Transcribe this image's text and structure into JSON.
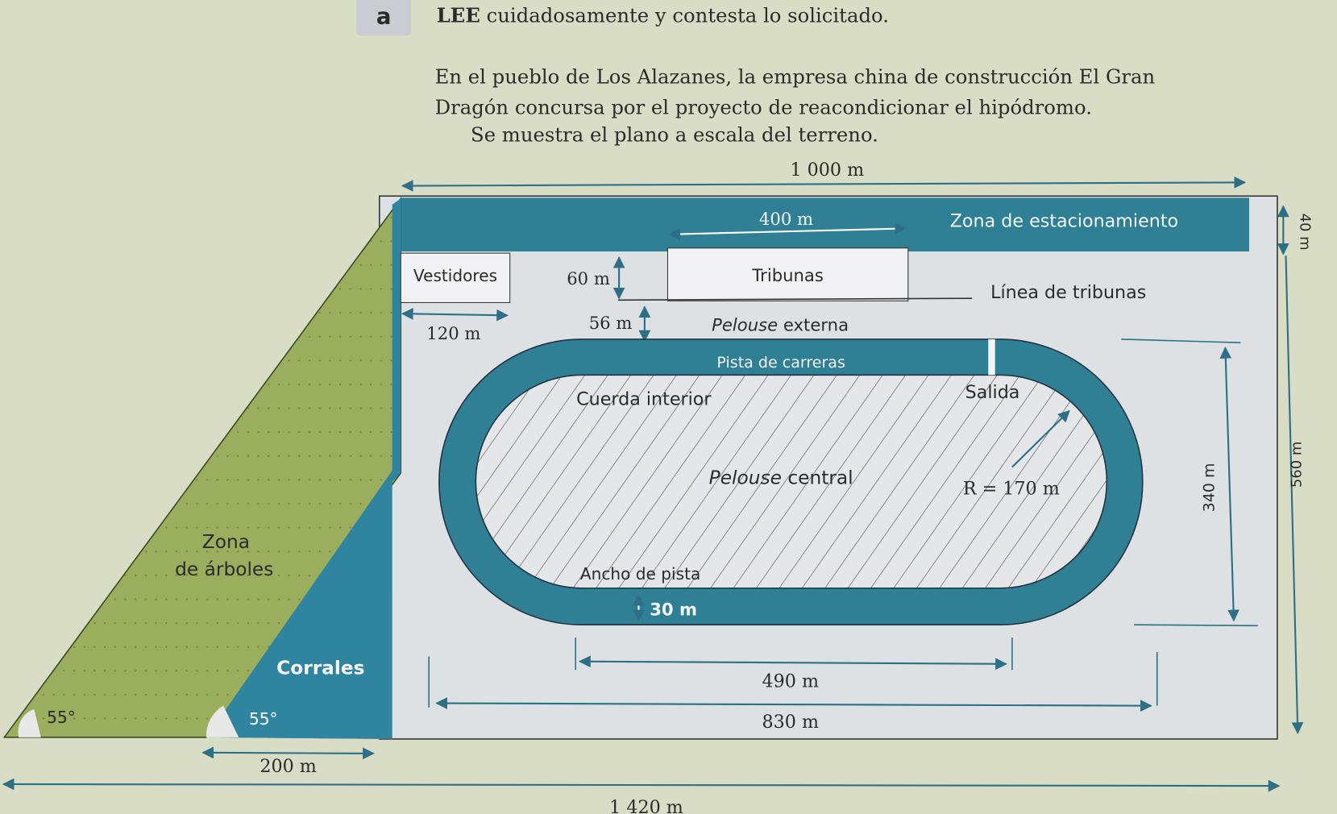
{
  "exercise": {
    "badge": "a",
    "instruction_bold": "LEE",
    "instruction_rest": " cuidadosamente y contesta lo solicitado.",
    "paragraph": [
      "En el pueblo de Los Alazanes, la empresa china de construcción El Gran",
      "Dragón concursa por el proyecto de reacondicionar el hipódromo.",
      "Se muestra el plano a escala del terreno."
    ]
  },
  "diagram": {
    "colors": {
      "parking": "#2f7f95",
      "trees": "#9aae5e",
      "corrales": "#2f84a0",
      "ground": "#dde1e4",
      "track": "#2f7f95"
    },
    "zones": {
      "parking": "Zona de estacionamiento",
      "vestidores": "Vestidores",
      "tribunas": "Tribunas",
      "linea_tribunas": "Línea de tribunas",
      "pelouse_externa_italic": "Pelouse",
      "pelouse_externa_rest": " externa",
      "pista": "Pista de carreras",
      "cuerda": "Cuerda interior",
      "salida": "Salida",
      "pelouse_central_italic": "Pelouse",
      "pelouse_central_rest": " central",
      "radius": "R = 170 m",
      "ancho": "Ancho de pista",
      "zona_arboles_1": "Zona",
      "zona_arboles_2": "de árboles",
      "corrales": "Corrales"
    },
    "dimensions": {
      "top": "1 000 m",
      "tribunas_width": "400 m",
      "parking_height": "40 m",
      "vestidores_gap": "60 m",
      "vestidores_width": "120 m",
      "pelouse_gap": "56 m",
      "track_height": "340 m",
      "total_height": "560 m",
      "track_width": "30 m",
      "straight": "490 m",
      "ground_width": "830 m",
      "corrales_base": "200 m",
      "total_width": "1 420 m",
      "angle_left": "55°",
      "angle_right": "55°"
    }
  }
}
